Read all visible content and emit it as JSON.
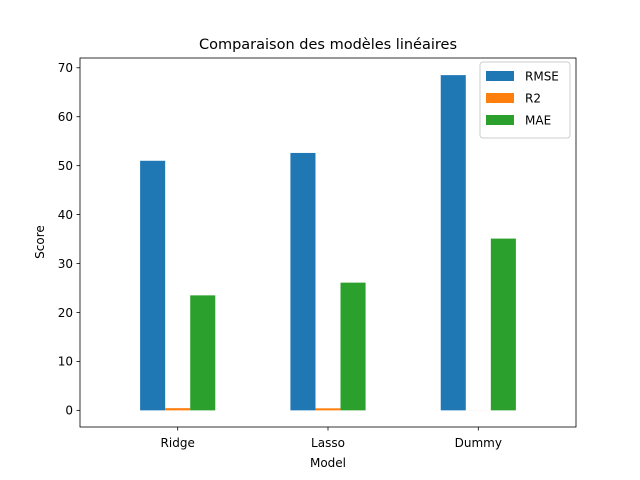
{
  "chart_data": {
    "type": "bar",
    "title": "Comparaison des modèles linéaires",
    "xlabel": "Model",
    "ylabel": "Score",
    "categories": [
      "Ridge",
      "Lasso",
      "Dummy"
    ],
    "series": [
      {
        "name": "RMSE",
        "values": [
          51.0,
          52.6,
          68.5
        ],
        "color": "#1f77b4"
      },
      {
        "name": "R2",
        "values": [
          0.45,
          0.42,
          -0.01
        ],
        "color": "#ff7f0e"
      },
      {
        "name": "MAE",
        "values": [
          23.5,
          26.1,
          35.1
        ],
        "color": "#2ca02c"
      }
    ],
    "yticks": [
      0,
      10,
      20,
      30,
      40,
      50,
      60,
      70
    ],
    "ylim": [
      -3.4,
      72
    ],
    "grid": false,
    "legend_position": "top-right"
  }
}
